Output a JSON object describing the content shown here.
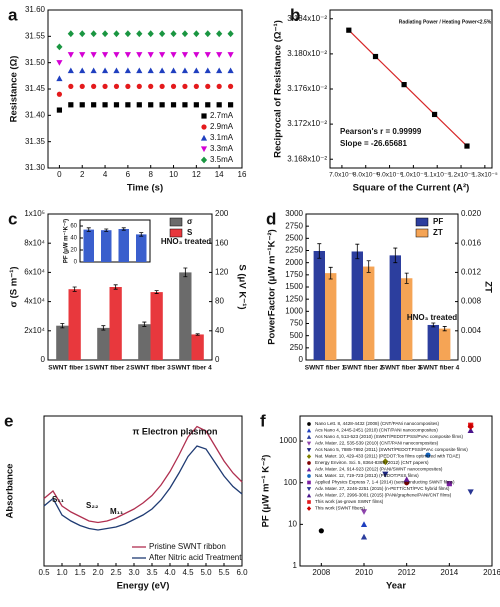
{
  "chart_data": [
    {
      "label": "a",
      "type": "scatter",
      "xlabel": "Time (s)",
      "ylabel": "Resistance (Ω)",
      "x": [
        0,
        1,
        2,
        3,
        4,
        5,
        6,
        7,
        8,
        9,
        10,
        11,
        12,
        13,
        14,
        15
      ],
      "xlim": [
        -1,
        16
      ],
      "xticks": [
        0,
        2,
        4,
        6,
        8,
        10,
        12,
        14,
        16
      ],
      "ylim": [
        31.3,
        31.6
      ],
      "yticks": [
        {
          "value": 31.3,
          "label": "31.30"
        },
        {
          "value": 31.35,
          "label": "31.35"
        },
        {
          "value": 31.4,
          "label": "31.40"
        },
        {
          "value": 31.45,
          "label": "31.45"
        },
        {
          "value": 31.5,
          "label": "31.50"
        },
        {
          "value": 31.55,
          "label": "31.55"
        },
        {
          "value": 31.6,
          "label": "31.60"
        }
      ],
      "legend": "lower right",
      "series": [
        {
          "name": "2.7mA",
          "color": "#000000",
          "marker": "square",
          "values": [
            31.41,
            31.42,
            31.42,
            31.42,
            31.42,
            31.42,
            31.42,
            31.42,
            31.42,
            31.42,
            31.42,
            31.42,
            31.42,
            31.42,
            31.42,
            31.42
          ]
        },
        {
          "name": "2.9mA",
          "color": "#e41a1c",
          "marker": "circle",
          "values": [
            31.44,
            31.455,
            31.455,
            31.455,
            31.455,
            31.455,
            31.455,
            31.455,
            31.455,
            31.455,
            31.455,
            31.455,
            31.455,
            31.455,
            31.455,
            31.455
          ]
        },
        {
          "name": "3.1mA",
          "color": "#1f3fbf",
          "marker": "triangle",
          "values": [
            31.47,
            31.485,
            31.485,
            31.485,
            31.485,
            31.485,
            31.485,
            31.485,
            31.485,
            31.485,
            31.485,
            31.485,
            31.485,
            31.485,
            31.485,
            31.485
          ]
        },
        {
          "name": "3.3mA",
          "color": "#d400d4",
          "marker": "down",
          "values": [
            31.5,
            31.515,
            31.515,
            31.515,
            31.515,
            31.515,
            31.515,
            31.515,
            31.515,
            31.515,
            31.515,
            31.515,
            31.515,
            31.515,
            31.515,
            31.515
          ]
        },
        {
          "name": "3.5mA",
          "color": "#1a9641",
          "marker": "diamond",
          "values": [
            31.53,
            31.555,
            31.555,
            31.555,
            31.555,
            31.555,
            31.555,
            31.555,
            31.555,
            31.555,
            31.555,
            31.555,
            31.555,
            31.555,
            31.555,
            31.555
          ]
        }
      ]
    },
    {
      "label": "b",
      "type": "scatter",
      "xlabel": "Square of the Current (A²)",
      "ylabel": "Reciprocal of Resistance (Ω⁻¹)",
      "x": [
        7.29e-06,
        8.41e-06,
        9.61e-06,
        1.089e-05,
        1.225e-05
      ],
      "xlim": [
        6.5e-06,
        1.33e-05
      ],
      "xticks": [
        {
          "value": 7e-06,
          "label": "7.0x10⁻⁶"
        },
        {
          "value": 8e-06,
          "label": "8.0x10⁻⁶"
        },
        {
          "value": 9e-06,
          "label": "9.0x10⁻⁶"
        },
        {
          "value": 1e-05,
          "label": "1.0x10⁻⁵"
        },
        {
          "value": 1.1e-05,
          "label": "1.1x10⁻⁵"
        },
        {
          "value": 1.2e-05,
          "label": "1.2x10⁻⁵"
        },
        {
          "value": 1.3e-05,
          "label": "1.3x10⁻⁵"
        }
      ],
      "ylim": [
        0.03167,
        0.03185
      ],
      "yticks": [
        {
          "value": 0.03168,
          "label": "3.168x10⁻²"
        },
        {
          "value": 0.03172,
          "label": "3.172x10⁻²"
        },
        {
          "value": 0.03176,
          "label": "3.176x10⁻²"
        },
        {
          "value": 0.0318,
          "label": "3.180x10⁻²"
        },
        {
          "value": 0.03184,
          "label": "3.184x10⁻²"
        }
      ],
      "annotations": [
        "Pearson's r = 0.99999",
        "Slope = -26.65681",
        "Radiating Power / Heating Power<2.5%"
      ],
      "series": [
        {
          "color": "#000000",
          "line_color": "#d62728",
          "marker": "square",
          "values": [
            0.031827,
            0.031797,
            0.031765,
            0.031731,
            0.031695
          ]
        }
      ]
    },
    {
      "label": "c",
      "type": "bar",
      "ylabel": "σ (S m⁻¹)",
      "y2label": "S (μV K⁻¹)",
      "categories": [
        "SWNT fiber 1",
        "SWNT fiber 2",
        "SWNT fiber 3",
        "SWNT fiber 4"
      ],
      "ylim": [
        0,
        100000
      ],
      "yticks": [
        0,
        {
          "value": 20000,
          "label": "2x10⁴"
        },
        {
          "value": 40000,
          "label": "4x10⁴"
        },
        {
          "value": 60000,
          "label": "6x10⁴"
        },
        {
          "value": 80000,
          "label": "8x10⁴"
        },
        {
          "value": 100000,
          "label": "1x10⁵"
        }
      ],
      "y2lim": [
        0,
        200
      ],
      "y2ticks": [
        0,
        40,
        80,
        120,
        160,
        200
      ],
      "legend": "upper right",
      "annotations": [
        "HNO₃ treated"
      ],
      "series": [
        {
          "name": "σ",
          "color": "#6b6b6b",
          "values": [
            23500,
            22000,
            24500,
            60000
          ],
          "errors": [
            1500,
            1500,
            1500,
            3000
          ]
        },
        {
          "name": "S",
          "color": "#e8383d",
          "axis": "y2",
          "values": [
            97,
            100,
            93,
            35
          ],
          "errors": [
            3,
            3,
            2,
            1
          ]
        }
      ]
    },
    {
      "type": "bar",
      "ylabel": "PF (μW m⁻¹K⁻²)",
      "categories": [
        null,
        null,
        null,
        null
      ],
      "ylim": [
        0,
        70
      ],
      "yticks": [
        0,
        20,
        40,
        60
      ],
      "series": [
        {
          "color": "#3a5fcd",
          "values": [
            54,
            53,
            55,
            46
          ],
          "errors": [
            3,
            2,
            2,
            3
          ]
        }
      ]
    },
    {
      "label": "d",
      "type": "bar",
      "ylabel": "PowerFactor (μW m⁻¹K⁻²)",
      "y2label": "ZT",
      "categories": [
        "SWNT fiber 1",
        "SWNT fiber 2",
        "SWNT fiber 3",
        "SWNT fiber 4"
      ],
      "ylim": [
        0,
        3000
      ],
      "yticks": [
        0,
        250,
        500,
        750,
        1000,
        1250,
        1500,
        1750,
        2000,
        2250,
        2500,
        2750,
        3000
      ],
      "y2lim": [
        0,
        0.02
      ],
      "y2ticks": [
        {
          "value": 0,
          "label": "0.000"
        },
        {
          "value": 0.004,
          "label": "0.004"
        },
        {
          "value": 0.008,
          "label": "0.008"
        },
        {
          "value": 0.012,
          "label": "0.012"
        },
        {
          "value": 0.016,
          "label": "0.016"
        },
        {
          "value": 0.02,
          "label": "0.020"
        }
      ],
      "legend": "upper right",
      "annotations": [
        "HNO₃ treated"
      ],
      "series": [
        {
          "name": "PF",
          "color": "#2c3e9e",
          "values": [
            2240,
            2230,
            2150,
            720
          ],
          "errors": [
            150,
            150,
            150,
            40
          ]
        },
        {
          "name": "ZT",
          "color": "#f5a455",
          "axis": "y2",
          "values": [
            0.0119,
            0.0128,
            0.0112,
            0.0043
          ],
          "errors": [
            0.0008,
            0.0008,
            0.0007,
            0.0003
          ]
        }
      ]
    },
    {
      "label": "e",
      "type": "line",
      "xlabel": "Energy (eV)",
      "ylabel": "Absorbance",
      "x": [
        0.5,
        0.75,
        1,
        1.25,
        1.5,
        1.75,
        2,
        2.25,
        2.5,
        2.75,
        3,
        3.25,
        3.5,
        3.75,
        4,
        4.25,
        4.5,
        4.75,
        5,
        5.25,
        5.5,
        5.75,
        6
      ],
      "xlim": [
        0.5,
        6
      ],
      "xticks": [
        0.5,
        {
          "value": 1,
          "label": "1.0"
        },
        1.5,
        {
          "value": 2,
          "label": "2.0"
        },
        2.5,
        {
          "value": 3,
          "label": "3.0"
        },
        3.5,
        {
          "value": 4,
          "label": "4.0"
        },
        4.5,
        {
          "value": 5,
          "label": "5.0"
        },
        5.5,
        {
          "value": 6,
          "label": "6.0"
        }
      ],
      "ylim": [
        0,
        1
      ],
      "legend": "lower right",
      "annotations": [
        "S₁₁",
        "S₂₂",
        "M₁₁",
        "π Electron plasmon"
      ],
      "series": [
        {
          "name": "Pristine SWNT ribbon",
          "color": "#b03050",
          "values": [
            0.45,
            0.5,
            0.4,
            0.36,
            0.33,
            0.3,
            0.29,
            0.3,
            0.32,
            0.35,
            0.38,
            0.42,
            0.47,
            0.54,
            0.63,
            0.74,
            0.86,
            0.93,
            0.9,
            0.8,
            0.7,
            0.62,
            0.56
          ]
        },
        {
          "name": "After Nitric acid Treatment",
          "color": "#1f3b73",
          "values": [
            0.4,
            0.45,
            0.34,
            0.3,
            0.27,
            0.25,
            0.24,
            0.25,
            0.26,
            0.28,
            0.31,
            0.34,
            0.38,
            0.44,
            0.52,
            0.62,
            0.73,
            0.8,
            0.78,
            0.69,
            0.6,
            0.53,
            0.48
          ]
        }
      ]
    },
    {
      "label": "f",
      "type": "scatter",
      "xlabel": "Year",
      "ylabel": "PF (μW m⁻¹ K⁻²)",
      "ylog": true,
      "xlim": [
        2007,
        2016
      ],
      "xticks": [
        2008,
        2010,
        2012,
        2014,
        2016
      ],
      "ylim": [
        1,
        4000
      ],
      "yticks": [
        1,
        10,
        100,
        1000
      ],
      "legend": "upper left",
      "series": [
        {
          "name": "Nano Lett. 8, 4428-4432 (2008) (CNT/PANi nanocomposites)",
          "color": "#000000",
          "marker": "circle",
          "x": [
            2008
          ],
          "values": [
            7
          ]
        },
        {
          "name": "Acs Nano 4, 2445-2451 (2010) (CNT/PANi nanocomposites)",
          "color": "#1f3fbf",
          "marker": "triangle",
          "x": [
            2010
          ],
          "values": [
            10
          ]
        },
        {
          "name": "Acs Nano 4, 513-523 (2010) (SWNT/PEDOT:PSS/PVAc composite films)",
          "color": "#2c3e9e",
          "marker": "triangle",
          "x": [
            2010
          ],
          "values": [
            5
          ]
        },
        {
          "name": "Adv. Mater. 22, 535-539 (2010) (CNT/PANi nanocomposites)",
          "color": "#8e44ad",
          "marker": "down",
          "x": [
            2010
          ],
          "values": [
            20
          ]
        },
        {
          "name": "Acs Nano 5, 7885-7892 (2011) (SWNT/PEDOT:PSS/PVAc composite films)",
          "color": "#1a237e",
          "marker": "down",
          "x": [
            2011
          ],
          "values": [
            160
          ]
        },
        {
          "name": "Nat. Mater. 10, 429-433 (2011) (PEDOT:Tos films optimized with TDAE)",
          "color": "#808000",
          "marker": "diamond",
          "x": [
            2011
          ],
          "values": [
            320
          ]
        },
        {
          "name": "Energy Environ. Sci. 5, 8364-8369 (2012) (CNT papers)",
          "color": "#800000",
          "marker": "circle",
          "x": [
            2012
          ],
          "values": [
            100
          ]
        },
        {
          "name": "Adv. Mater. 24, 914-923 (2012) (PANI/SWNT nanocomposites)",
          "color": "#6a1b9a",
          "marker": "triangle",
          "x": [
            2012
          ],
          "values": [
            120
          ]
        },
        {
          "name": "Nat. Mater. 12, 719-723 (2013) (PEDOT:PSS films)",
          "color": "#1565c0",
          "marker": "circle",
          "x": [
            2013
          ],
          "values": [
            460
          ]
        },
        {
          "name": "Applied Physics Express 7, 1-4 (2014) (semiconducting SWNT films)",
          "color": "#7b1fa2",
          "marker": "square",
          "x": [
            2014
          ],
          "values": [
            95
          ]
        },
        {
          "name": "Adv. Mater. 27, 2246-2251 (2015) (n-PETT/CNT/PVC hybrid films)",
          "color": "#283593",
          "marker": "down",
          "x": [
            2015
          ],
          "values": [
            60
          ]
        },
        {
          "name": "Adv. Mater. 27, 2996-3001 (2015) (PANi/graphene/PANi/CNT films)",
          "color": "#4a148c",
          "marker": "triangle",
          "x": [
            2015
          ],
          "values": [
            1800
          ]
        },
        {
          "name": "This work (as-grown SWNT films)",
          "color": "#e41a1c",
          "marker": "square",
          "x": [
            2015
          ],
          "values": [
            2400
          ]
        },
        {
          "name": "This work (SWNT fibers)",
          "color": "#cc0000",
          "marker": "diamond",
          "x": [
            2015
          ],
          "values": [
            2240
          ]
        }
      ]
    }
  ]
}
